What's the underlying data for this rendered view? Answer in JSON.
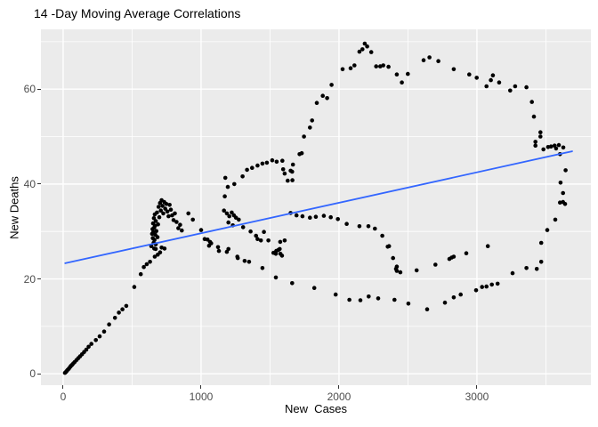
{
  "title": "14 -Day Moving Average Correlations",
  "colors": {
    "panel_bg": "#EBEBEB",
    "grid": "#FFFFFF",
    "point": "#000000",
    "smooth_line": "#3366FF",
    "tick_label": "#4D4D4D",
    "tick_mark": "#333333",
    "title_text": "#000000"
  },
  "chart_data": {
    "type": "scatter",
    "title": "14 -Day Moving Average Correlations",
    "xlabel": "New  Cases",
    "ylabel": "New Deaths",
    "legend": false,
    "grid": true,
    "x_ticks": [
      0,
      1000,
      2000,
      3000
    ],
    "x_minor_ticks": [
      500,
      1500,
      2500,
      3500
    ],
    "y_ticks": [
      0,
      20,
      40,
      60
    ],
    "y_minor_ticks": [
      10,
      30,
      50,
      70
    ],
    "xlim": [
      -161,
      3826
    ],
    "ylim": [
      -2.4,
      72.6
    ],
    "trend_line": {
      "x1": 15,
      "y1": 23.3,
      "x2": 3690,
      "y2": 46.9
    },
    "point_radius": 2.3,
    "points": [
      [
        13,
        0.2
      ],
      [
        20,
        0.4
      ],
      [
        26,
        0.6
      ],
      [
        32,
        0.8
      ],
      [
        39,
        1.0
      ],
      [
        45,
        1.2
      ],
      [
        52,
        1.5
      ],
      [
        58,
        1.7
      ],
      [
        65,
        1.9
      ],
      [
        74,
        2.2
      ],
      [
        84,
        2.5
      ],
      [
        97,
        2.9
      ],
      [
        110,
        3.3
      ],
      [
        123,
        3.7
      ],
      [
        137,
        4.1
      ],
      [
        152,
        4.6
      ],
      [
        168,
        5.1
      ],
      [
        185,
        5.7
      ],
      [
        205,
        6.3
      ],
      [
        237,
        7.1
      ],
      [
        265,
        7.9
      ],
      [
        297,
        8.9
      ],
      [
        333,
        10.4
      ],
      [
        376,
        11.8
      ],
      [
        404,
        12.9
      ],
      [
        430,
        13.6
      ],
      [
        458,
        14.3
      ],
      [
        516,
        18.3
      ],
      [
        563,
        21.0
      ],
      [
        585,
        22.5
      ],
      [
        606,
        23.1
      ],
      [
        630,
        23.6
      ],
      [
        645,
        29.5
      ],
      [
        648,
        30.5
      ],
      [
        650,
        28.6
      ],
      [
        652,
        31.7
      ],
      [
        654,
        29.9
      ],
      [
        656,
        27.6
      ],
      [
        658,
        32.8
      ],
      [
        660,
        30.8
      ],
      [
        662,
        28.2
      ],
      [
        664,
        33.6
      ],
      [
        666,
        31.2
      ],
      [
        668,
        29.3
      ],
      [
        671,
        27.3
      ],
      [
        672,
        32.2
      ],
      [
        676,
        30.1
      ],
      [
        680,
        34.0
      ],
      [
        684,
        28.8
      ],
      [
        688,
        31.5
      ],
      [
        692,
        35.2
      ],
      [
        697,
        33.0
      ],
      [
        702,
        36.0
      ],
      [
        708,
        34.4
      ],
      [
        714,
        36.6
      ],
      [
        720,
        35.4
      ],
      [
        726,
        33.8
      ],
      [
        733,
        36.2
      ],
      [
        740,
        34.8
      ],
      [
        748,
        35.8
      ],
      [
        756,
        34.2
      ],
      [
        764,
        33.2
      ],
      [
        772,
        35.6
      ],
      [
        781,
        34.6
      ],
      [
        790,
        33.4
      ],
      [
        800,
        32.4
      ],
      [
        810,
        33.8
      ],
      [
        822,
        32.0
      ],
      [
        835,
        30.7
      ],
      [
        848,
        31.4
      ],
      [
        860,
        30.2
      ],
      [
        639,
        26.9
      ],
      [
        660,
        26.4
      ],
      [
        671,
        26.3
      ],
      [
        686,
        25.1
      ],
      [
        703,
        25.6
      ],
      [
        714,
        26.6
      ],
      [
        735,
        26.4
      ],
      [
        664,
        24.7
      ],
      [
        908,
        33.8
      ],
      [
        940,
        32.5
      ],
      [
        1000,
        30.3
      ],
      [
        1047,
        28.3
      ],
      [
        1065,
        27.8
      ],
      [
        1073,
        27.5
      ],
      [
        1123,
        26.7
      ],
      [
        1198,
        26.3
      ],
      [
        1263,
        24.7
      ],
      [
        1316,
        23.8
      ],
      [
        1348,
        23.6
      ],
      [
        1445,
        22.3
      ],
      [
        1542,
        20.3
      ],
      [
        1660,
        19.1
      ],
      [
        1821,
        18.1
      ],
      [
        1976,
        16.7
      ],
      [
        2075,
        15.6
      ],
      [
        2155,
        15.5
      ],
      [
        2215,
        16.3
      ],
      [
        2284,
        15.9
      ],
      [
        2402,
        15.6
      ],
      [
        2503,
        14.8
      ],
      [
        2639,
        13.6
      ],
      [
        2768,
        15.0
      ],
      [
        2832,
        16.1
      ],
      [
        2882,
        16.7
      ],
      [
        2994,
        17.6
      ],
      [
        3037,
        18.3
      ],
      [
        3069,
        18.4
      ],
      [
        3108,
        18.8
      ],
      [
        3150,
        19.0
      ],
      [
        3258,
        21.2
      ],
      [
        3359,
        22.3
      ],
      [
        3434,
        22.1
      ],
      [
        3466,
        23.6
      ],
      [
        3466,
        27.6
      ],
      [
        3510,
        30.3
      ],
      [
        3568,
        32.5
      ],
      [
        3602,
        36.1
      ],
      [
        3624,
        36.2
      ],
      [
        3639,
        35.8
      ],
      [
        3624,
        38.1
      ],
      [
        3606,
        40.3
      ],
      [
        3643,
        42.9
      ],
      [
        3079,
        26.9
      ],
      [
        3594,
        48.2
      ],
      [
        3626,
        47.7
      ],
      [
        3602,
        46.3
      ],
      [
        3574,
        47.5
      ],
      [
        3563,
        48.1
      ],
      [
        3537,
        47.9
      ],
      [
        3516,
        47.8
      ],
      [
        3482,
        47.3
      ],
      [
        3424,
        48.1
      ],
      [
        3424,
        48.9
      ],
      [
        3460,
        50.0
      ],
      [
        3460,
        50.9
      ],
      [
        3413,
        54.2
      ],
      [
        3398,
        57.3
      ],
      [
        1746,
        50.0
      ],
      [
        1789,
        51.9
      ],
      [
        1805,
        53.4
      ],
      [
        1839,
        57.1
      ],
      [
        1882,
        58.6
      ],
      [
        1914,
        58.1
      ],
      [
        1946,
        60.9
      ],
      [
        2026,
        64.2
      ],
      [
        2084,
        64.4
      ],
      [
        2112,
        65.0
      ],
      [
        2148,
        67.9
      ],
      [
        2170,
        68.4
      ],
      [
        2187,
        69.6
      ],
      [
        2204,
        69.0
      ],
      [
        2234,
        67.8
      ],
      [
        2269,
        64.8
      ],
      [
        2299,
        64.8
      ],
      [
        2321,
        65.0
      ],
      [
        2359,
        64.7
      ],
      [
        2419,
        63.1
      ],
      [
        2456,
        61.4
      ],
      [
        2499,
        63.2
      ],
      [
        2613,
        66.1
      ],
      [
        2656,
        66.7
      ],
      [
        2720,
        65.9
      ],
      [
        2832,
        64.2
      ],
      [
        2944,
        63.1
      ],
      [
        2998,
        62.4
      ],
      [
        3069,
        60.6
      ],
      [
        3101,
        61.9
      ],
      [
        3116,
        62.9
      ],
      [
        3161,
        61.4
      ],
      [
        3241,
        59.7
      ],
      [
        3277,
        60.6
      ],
      [
        3359,
        60.4
      ],
      [
        1172,
        37.4
      ],
      [
        1176,
        41.3
      ],
      [
        1194,
        39.4
      ],
      [
        1241,
        40.0
      ],
      [
        1301,
        41.6
      ],
      [
        1333,
        43.0
      ],
      [
        1370,
        43.4
      ],
      [
        1409,
        43.9
      ],
      [
        1445,
        44.3
      ],
      [
        1477,
        44.5
      ],
      [
        1516,
        45.0
      ],
      [
        1548,
        44.7
      ],
      [
        1589,
        44.9
      ],
      [
        1666,
        44.1
      ],
      [
        1714,
        46.3
      ],
      [
        1730,
        46.5
      ],
      [
        1595,
        43.1
      ],
      [
        1606,
        42.2
      ],
      [
        1628,
        40.7
      ],
      [
        1649,
        42.8
      ],
      [
        1660,
        42.6
      ],
      [
        1662,
        40.8
      ],
      [
        1649,
        33.9
      ],
      [
        1692,
        33.4
      ],
      [
        1735,
        33.2
      ],
      [
        1789,
        32.9
      ],
      [
        1832,
        33.1
      ],
      [
        1890,
        33.3
      ],
      [
        1940,
        33.0
      ],
      [
        1992,
        32.6
      ],
      [
        2056,
        31.6
      ],
      [
        2148,
        31.1
      ],
      [
        2213,
        31.1
      ],
      [
        2260,
        30.6
      ],
      [
        2314,
        29.1
      ],
      [
        2353,
        26.8
      ],
      [
        2363,
        26.9
      ],
      [
        2392,
        24.4
      ],
      [
        2413,
        22.1
      ],
      [
        2419,
        22.6
      ],
      [
        2419,
        21.7
      ],
      [
        2445,
        21.4
      ],
      [
        2563,
        21.8
      ],
      [
        2699,
        23.0
      ],
      [
        2800,
        24.2
      ],
      [
        2817,
        24.5
      ],
      [
        2832,
        24.7
      ],
      [
        2923,
        25.4
      ],
      [
        1166,
        34.4
      ],
      [
        1187,
        33.8
      ],
      [
        1205,
        33.2
      ],
      [
        1222,
        34.0
      ],
      [
        1238,
        33.4
      ],
      [
        1253,
        32.9
      ],
      [
        1273,
        32.5
      ],
      [
        1198,
        31.9
      ],
      [
        1230,
        31.3
      ],
      [
        1026,
        28.4
      ],
      [
        1058,
        27.0
      ],
      [
        1129,
        25.9
      ],
      [
        1187,
        25.7
      ],
      [
        1266,
        24.4
      ],
      [
        1525,
        25.5
      ],
      [
        1545,
        25.9
      ],
      [
        1560,
        26.1
      ],
      [
        1575,
        25.3
      ],
      [
        1587,
        24.9
      ],
      [
        1542,
        25.3
      ],
      [
        1570,
        26.3
      ],
      [
        1606,
        28.1
      ],
      [
        1574,
        27.8
      ],
      [
        1488,
        28.1
      ],
      [
        1456,
        29.9
      ],
      [
        1434,
        28.1
      ],
      [
        1409,
        28.4
      ],
      [
        1398,
        29.1
      ],
      [
        1359,
        30.0
      ],
      [
        1305,
        30.9
      ]
    ]
  }
}
